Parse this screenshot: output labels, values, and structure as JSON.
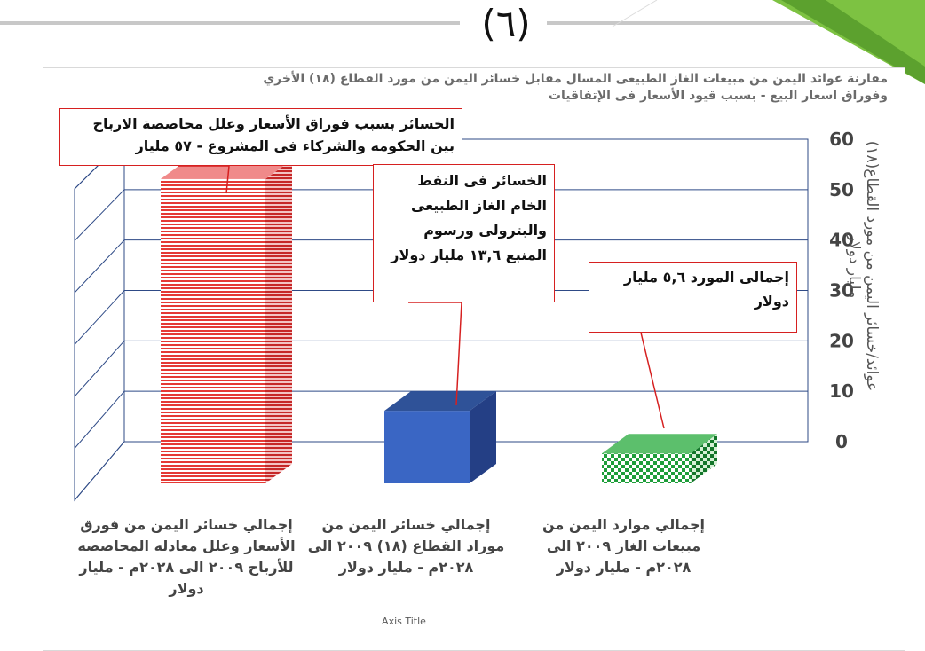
{
  "slide": {
    "page_number": "(٦)"
  },
  "chart_data": {
    "type": "bar",
    "title": "مقارنة عوائد اليمن من مبيعات الغاز الطبيعى المسال مقابل خسائر اليمن من مورد القطاع (١٨) الأخري وفوراق اسعار البيع - بسبب قيود الأسعار فى الإتفاقيات",
    "categories": [
      "إجمالي خسائر اليمن من فورق الأسعار وعلل معادله المحاصصه للأرباح ٢٠٠٩ الى ٢٠٢٨م - مليار دولار",
      "إجمالي خسائر اليمن من موراد القطاع (١٨) ٢٠٠٩ الى ٢٠٢٨م - مليار دولار",
      "إجمالي موارد اليمن من مبيعات الغاز ٢٠٠٩ الى ٢٠٢٨م - مليار دولار"
    ],
    "values": [
      57,
      13.6,
      5.6
    ],
    "ylabel": "عوائد/خسائر اليمن من مورد القطاع(١٨) مليار دولار",
    "xlabel": "Axis Title",
    "ylim": [
      0,
      60
    ],
    "yticks": [
      "0",
      "10",
      "20",
      "30",
      "40",
      "50",
      "60"
    ],
    "grid": true,
    "bar_colors": [
      "#e53935",
      "#3a66c4",
      "#1e9e3a"
    ],
    "annotations": [
      "الخسائر بسبب فوراق الأسعار وعلل محاصصة الارباح بين الحكومه والشركاء فى المشروع - ٥٧ مليار",
      "الخسائر فى النفط الخام الغاز الطبيعى والبترولى ورسوم المنبع ١٣,٦ مليار دولار",
      "إجمالى المورد ٥,٦ مليار دولار"
    ]
  }
}
